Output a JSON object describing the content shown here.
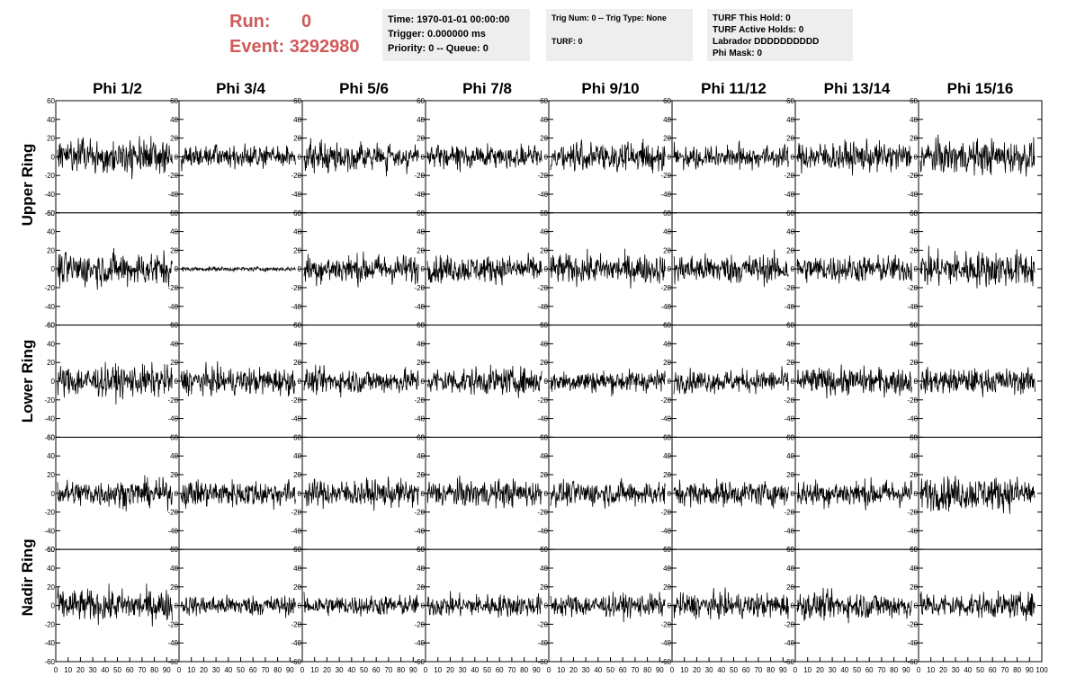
{
  "header": {
    "run_label": "Run:",
    "run_value": "0",
    "event_label": "Event:",
    "event_value": "3292980",
    "info1": [
      "Time: 1970-01-01 00:00:00",
      "Trigger: 0.000000 ms",
      "Priority: 0 -- Queue: 0"
    ],
    "info2": [
      "Trig Num: 0 -- Trig Type: None",
      "",
      "TURF: 0"
    ],
    "info3": [
      "TURF This Hold: 0",
      "TURF Active Holds: 0",
      "Labrador DDDDDDDDDD",
      "Phi Mask: 0"
    ]
  },
  "chart_data": {
    "type": "line",
    "columns": [
      "Phi 1/2",
      "Phi 3/4",
      "Phi 5/6",
      "Phi 7/8",
      "Phi 9/10",
      "Phi 11/12",
      "Phi 13/14",
      "Phi 15/16"
    ],
    "ring_labels": [
      "Upper Ring",
      "Lower Ring",
      "Nadir Ring"
    ],
    "rows": 5,
    "ylim": [
      -60,
      60
    ],
    "xlim": [
      0,
      100
    ],
    "yticks": [
      -60,
      -40,
      -20,
      0,
      20,
      40,
      60
    ],
    "xticks": [
      "0",
      "10",
      "20",
      "30",
      "40",
      "50",
      "60",
      "70",
      "80",
      "90",
      "100"
    ],
    "samples_per_trace": 260,
    "trace_amplitudes": [
      [
        14,
        10,
        12,
        10,
        13,
        10,
        13,
        15
      ],
      [
        15,
        2,
        13,
        12,
        13,
        13,
        12,
        16
      ],
      [
        14,
        12,
        11,
        12,
        10,
        10,
        12,
        11
      ],
      [
        12,
        12,
        12,
        12,
        11,
        11,
        12,
        15
      ],
      [
        14,
        9,
        9,
        10,
        10,
        11,
        12,
        11
      ]
    ],
    "line_color": "#000000"
  }
}
